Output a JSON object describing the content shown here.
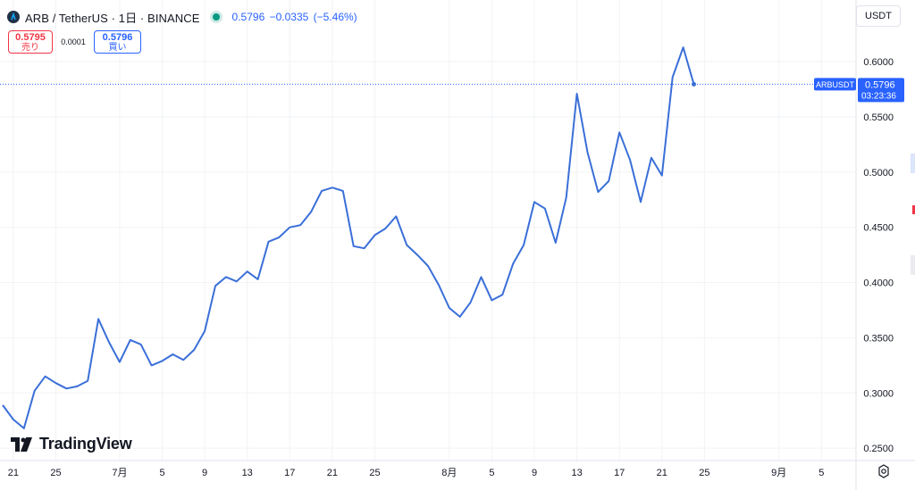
{
  "header": {
    "title": "ARB / TetherUS · 1日 · BINANCE",
    "price_change": "0.5796  −0.0335 (−5.46%)"
  },
  "trade": {
    "sell_price": "0.5795",
    "sell_label": "売り",
    "spread": "0.0001",
    "buy_price": "0.5796",
    "buy_label": "買い"
  },
  "currency": "USDT",
  "logo_text": "TradingView",
  "colors": {
    "line": "#3a6fd8",
    "accent": "#2962ff",
    "sell": "#f23645",
    "live": "#089981"
  },
  "chart_data": {
    "type": "line",
    "title": "ARB / TetherUS · 1日 · BINANCE",
    "x_unit": "day index (day 0 = 6/20)",
    "x": [
      0,
      1,
      2,
      3,
      4,
      5,
      6,
      7,
      8,
      9,
      10,
      11,
      12,
      13,
      14,
      15,
      16,
      17,
      18,
      19,
      20,
      21,
      22,
      23,
      24,
      25,
      26,
      27,
      28,
      29,
      30,
      31,
      32,
      33,
      34,
      35,
      36,
      37,
      38,
      39,
      40,
      41,
      42,
      43,
      44,
      45,
      46,
      47,
      48,
      49,
      50,
      51,
      52,
      53,
      54,
      55,
      56,
      57,
      58,
      59,
      60,
      61,
      62,
      63,
      64,
      65
    ],
    "values": [
      0.289,
      0.276,
      0.268,
      0.302,
      0.315,
      0.309,
      0.304,
      0.306,
      0.311,
      0.367,
      0.346,
      0.328,
      0.348,
      0.344,
      0.325,
      0.329,
      0.335,
      0.33,
      0.339,
      0.356,
      0.397,
      0.405,
      0.401,
      0.41,
      0.403,
      0.437,
      0.441,
      0.45,
      0.452,
      0.464,
      0.483,
      0.486,
      0.483,
      0.433,
      0.431,
      0.443,
      0.449,
      0.46,
      0.434,
      0.425,
      0.415,
      0.398,
      0.377,
      0.369,
      0.382,
      0.405,
      0.384,
      0.389,
      0.417,
      0.434,
      0.473,
      0.467,
      0.436,
      0.477,
      0.571,
      0.518,
      0.482,
      0.492,
      0.536,
      0.511,
      0.473,
      0.513,
      0.497,
      0.586,
      0.613,
      0.5796
    ],
    "xlim": [
      0,
      80
    ],
    "ylim": [
      0.2388,
      0.6462
    ],
    "x_ticks": [
      {
        "x": 1,
        "label": "21"
      },
      {
        "x": 5,
        "label": "25"
      },
      {
        "x": 11,
        "label": "7月"
      },
      {
        "x": 15,
        "label": "5"
      },
      {
        "x": 19,
        "label": "9"
      },
      {
        "x": 23,
        "label": "13"
      },
      {
        "x": 27,
        "label": "17"
      },
      {
        "x": 31,
        "label": "21"
      },
      {
        "x": 35,
        "label": "25"
      },
      {
        "x": 42,
        "label": "8月"
      },
      {
        "x": 46,
        "label": "5"
      },
      {
        "x": 50,
        "label": "9"
      },
      {
        "x": 54,
        "label": "13"
      },
      {
        "x": 58,
        "label": "17"
      },
      {
        "x": 62,
        "label": "21"
      },
      {
        "x": 66,
        "label": "25"
      },
      {
        "x": 73,
        "label": "9月"
      },
      {
        "x": 77,
        "label": "5"
      }
    ],
    "y_ticks": [
      {
        "v": 0.25,
        "label": "0.2500"
      },
      {
        "v": 0.3,
        "label": "0.3000"
      },
      {
        "v": 0.35,
        "label": "0.3500"
      },
      {
        "v": 0.4,
        "label": "0.4000"
      },
      {
        "v": 0.45,
        "label": "0.4500"
      },
      {
        "v": 0.5,
        "label": "0.5000"
      },
      {
        "v": 0.55,
        "label": "0.5500"
      },
      {
        "v": 0.6,
        "label": "0.6000"
      }
    ],
    "last_price": {
      "v": 0.5796,
      "symbol": "ARBUSDT",
      "price": "0.5796",
      "countdown": "03:23:36"
    },
    "grid": true
  }
}
